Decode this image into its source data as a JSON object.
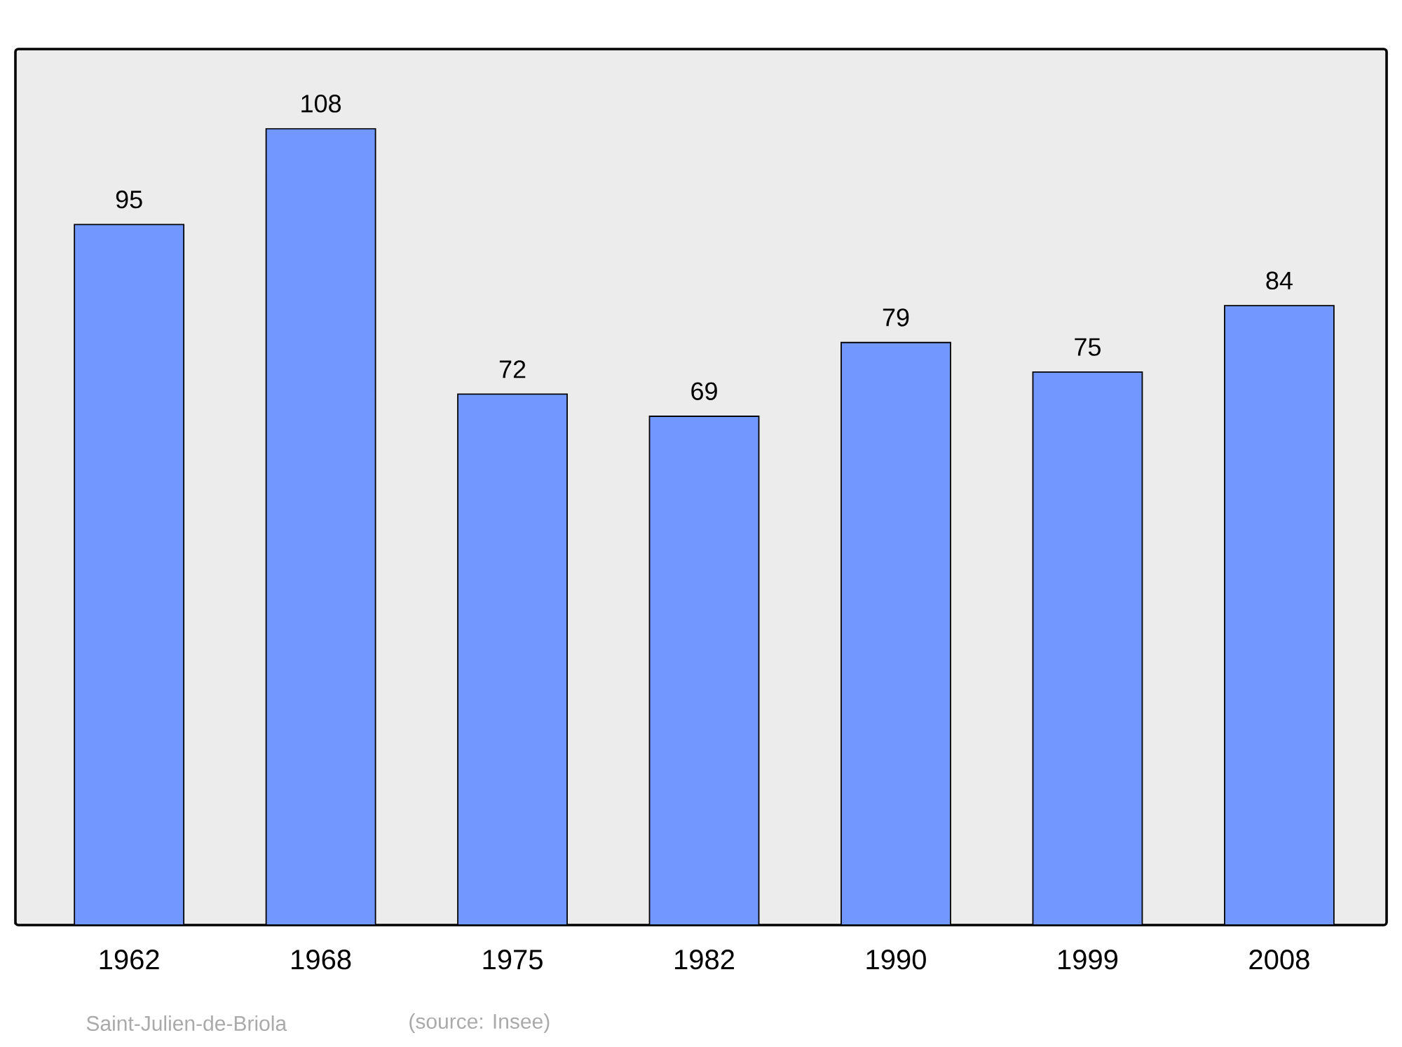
{
  "chart_data": {
    "type": "bar",
    "categories": [
      "1962",
      "1968",
      "1975",
      "1982",
      "1990",
      "1999",
      "2008"
    ],
    "values": [
      95,
      108,
      72,
      69,
      79,
      75,
      84
    ],
    "color": "#7298ff",
    "data_labels": true,
    "annotations": [
      "Saint-Julien-de-Briola",
      "(source: Insee)"
    ]
  }
}
